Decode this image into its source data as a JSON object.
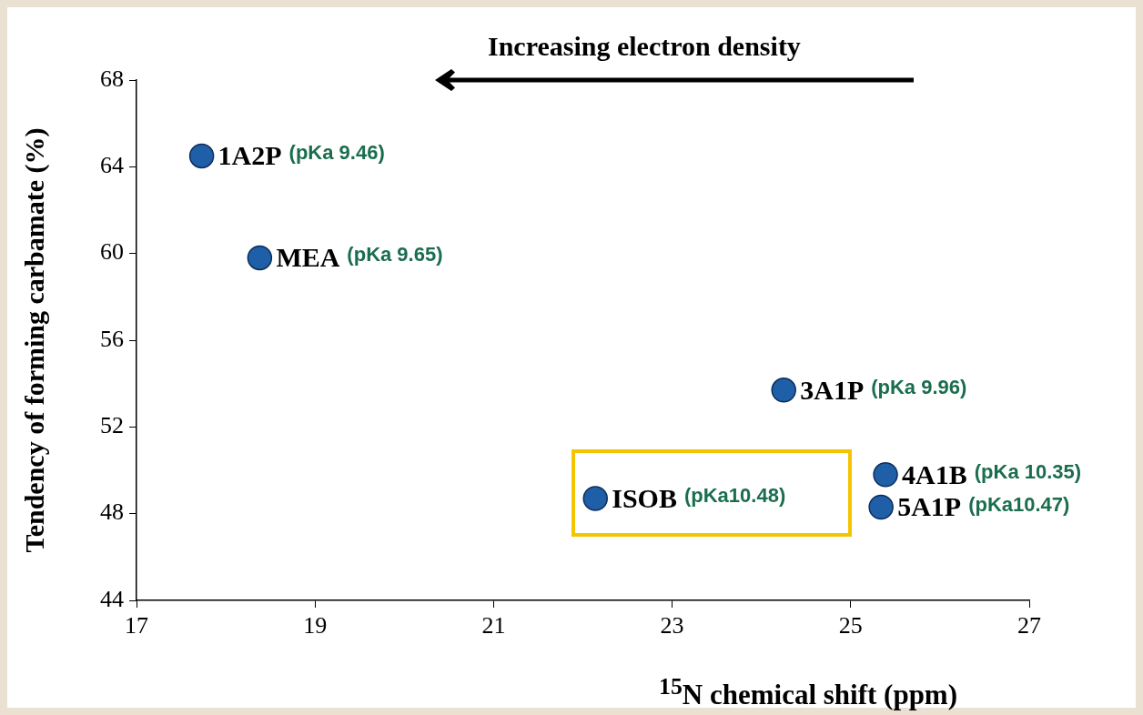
{
  "chart_data": {
    "type": "scatter",
    "xlabel": "$^{15}$N chemical shift (ppm)",
    "ylabel": "Tendency of forming carbamate (%)",
    "xlim": [
      17,
      27
    ],
    "xticks": [
      17,
      19,
      21,
      23,
      25,
      27
    ],
    "ylim": [
      44,
      68
    ],
    "yticks": [
      44,
      48,
      52,
      56,
      60,
      64,
      68
    ],
    "marker": "circle",
    "legend": false,
    "series": [
      {
        "name": "1A2P",
        "color": "#1f5fa8",
        "x": [
          17.73
        ],
        "values": [
          64.5
        ]
      },
      {
        "name": "MEA",
        "color": "#1f5fa8",
        "x": [
          18.38
        ],
        "values": [
          59.8
        ]
      },
      {
        "name": "3A1P",
        "color": "#1f5fa8",
        "x": [
          24.25
        ],
        "values": [
          53.7
        ]
      },
      {
        "name": "ISOB",
        "color": "#1f5fa8",
        "x": [
          22.14
        ],
        "values": [
          48.7
        ]
      },
      {
        "name": "4A1B",
        "color": "#1f5fa8",
        "x": [
          25.39
        ],
        "values": [
          49.8
        ]
      },
      {
        "name": "5A1P",
        "color": "#1f5fa8",
        "x": [
          25.34
        ],
        "values": [
          48.3
        ]
      }
    ],
    "annotations": [
      "Increasing electron density",
      "(pKa 9.46)",
      "(pKa 9.65)",
      "(pKa 9.96)",
      "(pKa10.48)",
      "(pKa 10.35)",
      "(pKa10.47)"
    ]
  }
}
